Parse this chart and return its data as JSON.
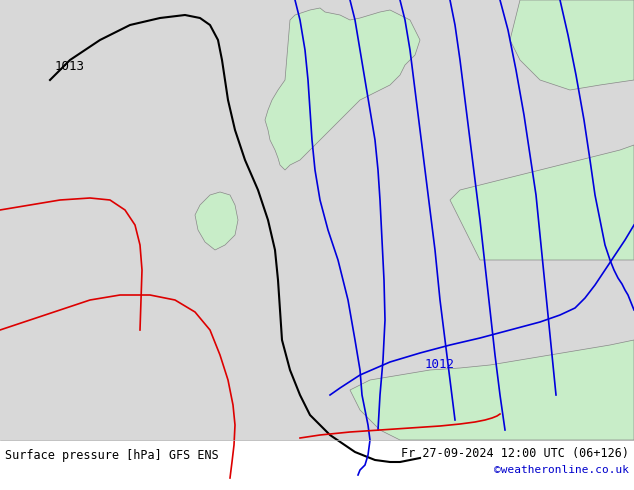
{
  "title": "Surface pressure [hPa] GFS ENS",
  "datetime_label": "Fr 27-09-2024 12:00 UTC (06+126)",
  "copyright": "©weatheronline.co.uk",
  "bg_color": "#d8d8d8",
  "land_color": "#c8edc8",
  "coast_color": "#888888",
  "isobar_1013_color": "#000000",
  "isobar_1012_color": "#0000dd",
  "isobar_red_color": "#dd0000",
  "isobar_blue_color": "#0000dd",
  "label_1013": "1013",
  "label_1012": "1012",
  "figsize": [
    6.34,
    4.9
  ],
  "dpi": 100
}
